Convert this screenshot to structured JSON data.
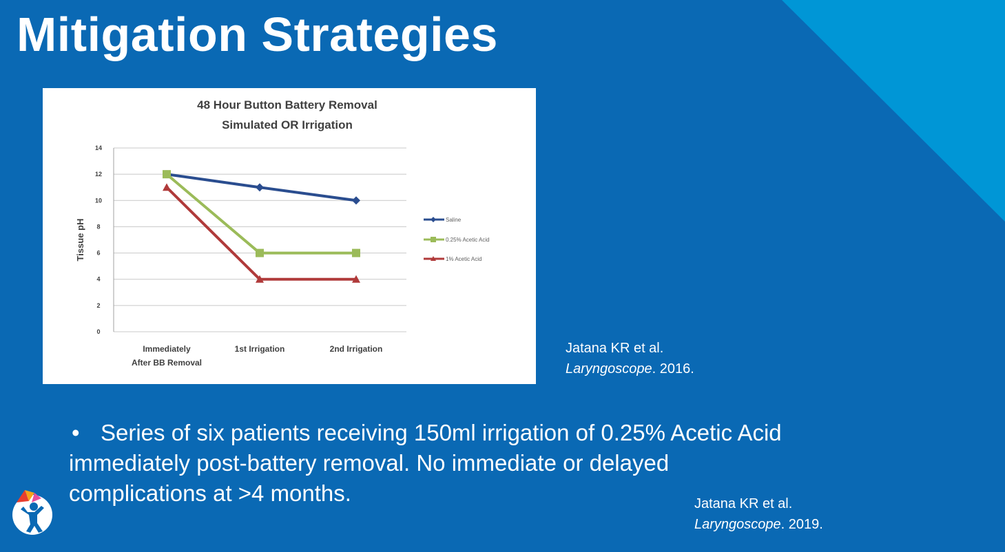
{
  "slide": {
    "title": "Mitigation Strategies",
    "colors": {
      "background": "#0a69b4",
      "accent": "#0096d6",
      "text": "#ffffff"
    }
  },
  "citations": [
    {
      "authors": "Jatana KR et al.",
      "journal": "Laryngoscope",
      "year": ". 2016."
    },
    {
      "authors": "Jatana KR et al.",
      "journal": "Laryngoscope",
      "year": ". 2019."
    }
  ],
  "bullet": {
    "marker": "•",
    "text": "Series of six patients receiving 150ml irrigation of 0.25% Acetic Acid immediately post-battery removal. No immediate or delayed complications at >4 months."
  },
  "logo": {
    "icon": "child-figure-logo-icon"
  },
  "chart_data": {
    "type": "line",
    "title": [
      "48 Hour Button Battery Removal",
      "Simulated OR Irrigation"
    ],
    "xlabel": "",
    "ylabel": "Tissue pH",
    "categories": [
      [
        "Immediately",
        "After BB Removal"
      ],
      [
        "1st Irrigation"
      ],
      [
        "2nd Irrigation"
      ]
    ],
    "ylim": [
      0,
      14
    ],
    "yticks": [
      0,
      2,
      4,
      6,
      8,
      10,
      12,
      14
    ],
    "grid": true,
    "legend_position": "right",
    "series": [
      {
        "name": "Saline",
        "color": "#2a4d8f",
        "marker": "diamond",
        "values": [
          12,
          11,
          10
        ]
      },
      {
        "name": "0.25% Acetic Acid",
        "color": "#9bbb59",
        "marker": "square",
        "values": [
          12,
          6,
          6
        ]
      },
      {
        "name": "1% Acetic Acid",
        "color": "#b03a3a",
        "marker": "triangle",
        "values": [
          11,
          4,
          4
        ]
      }
    ]
  }
}
